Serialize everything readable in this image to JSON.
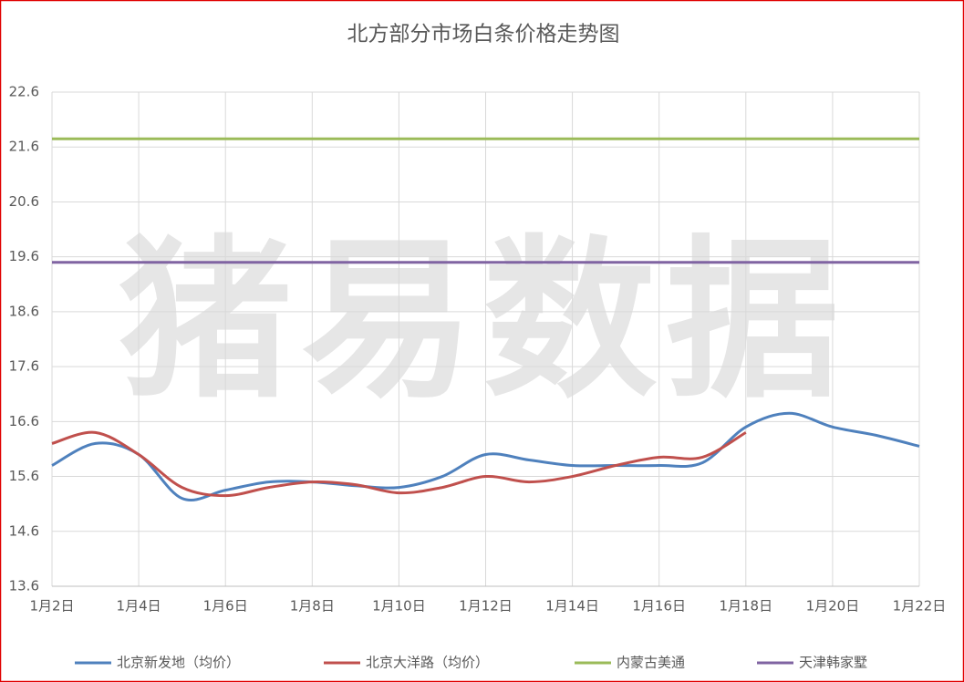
{
  "chart_data": {
    "type": "line",
    "title": "北方部分市场白条价格走势图",
    "watermark": "猪易数据",
    "categories": [
      "1月2日",
      null,
      "1月4日",
      null,
      "1月6日",
      null,
      "1月8日",
      null,
      "1月10日",
      null,
      "1月12日",
      null,
      "1月14日",
      null,
      "1月16日",
      null,
      "1月18日",
      null,
      "1月20日",
      null,
      "1月22日"
    ],
    "series": [
      {
        "name": "北京新发地（均价）",
        "color": "#4f81bd",
        "values": [
          15.8,
          16.2,
          16.0,
          15.2,
          15.35,
          15.5,
          15.5,
          15.43,
          15.4,
          15.6,
          16.0,
          15.9,
          15.8,
          15.8,
          15.8,
          15.85,
          16.5,
          16.75,
          16.5,
          16.35,
          16.15
        ]
      },
      {
        "name": "北京大洋路（均价）",
        "color": "#c0504d",
        "values": [
          16.2,
          16.4,
          16.0,
          15.4,
          15.25,
          15.4,
          15.5,
          15.45,
          15.3,
          15.4,
          15.6,
          15.5,
          15.6,
          15.8,
          15.95,
          15.95,
          16.4,
          null,
          null,
          null,
          null
        ]
      },
      {
        "name": "内蒙古美通",
        "color": "#9bbb59",
        "values": [
          21.75,
          21.75,
          21.75,
          21.75,
          21.75,
          21.75,
          21.75,
          21.75,
          21.75,
          21.75,
          21.75,
          21.75,
          21.75,
          21.75,
          21.75,
          21.75,
          21.75,
          21.75,
          21.75,
          21.75,
          21.75
        ]
      },
      {
        "name": "天津韩家墅",
        "color": "#8064a2",
        "values": [
          19.5,
          19.5,
          19.5,
          19.5,
          19.5,
          19.5,
          19.5,
          19.5,
          19.5,
          19.5,
          19.5,
          19.5,
          19.5,
          19.5,
          19.5,
          19.5,
          19.5,
          19.5,
          19.5,
          19.5,
          19.5
        ]
      }
    ],
    "ylim": [
      13.6,
      22.6
    ],
    "yticks": [
      13.6,
      14.6,
      15.6,
      16.6,
      17.6,
      18.6,
      19.6,
      20.6,
      21.6,
      22.6
    ],
    "grid": true,
    "legend": "bottom"
  }
}
